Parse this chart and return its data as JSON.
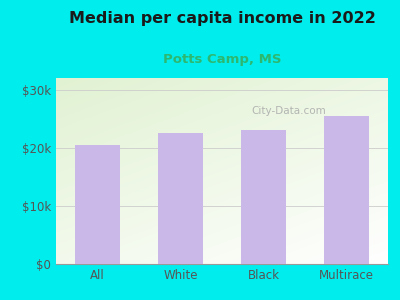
{
  "title": "Median per capita income in 2022",
  "subtitle": "Potts Camp, MS",
  "categories": [
    "All",
    "White",
    "Black",
    "Multirace"
  ],
  "values": [
    20500,
    22500,
    23000,
    25500
  ],
  "bar_color": "#c9b8e8",
  "title_color": "#1a1a1a",
  "subtitle_color": "#2db870",
  "background_outer": "#00eded",
  "yticks": [
    0,
    10000,
    20000,
    30000
  ],
  "ytick_labels": [
    "$0",
    "$10k",
    "$20k",
    "$30k"
  ],
  "ylim": [
    0,
    32000
  ],
  "watermark": "City-Data.com"
}
